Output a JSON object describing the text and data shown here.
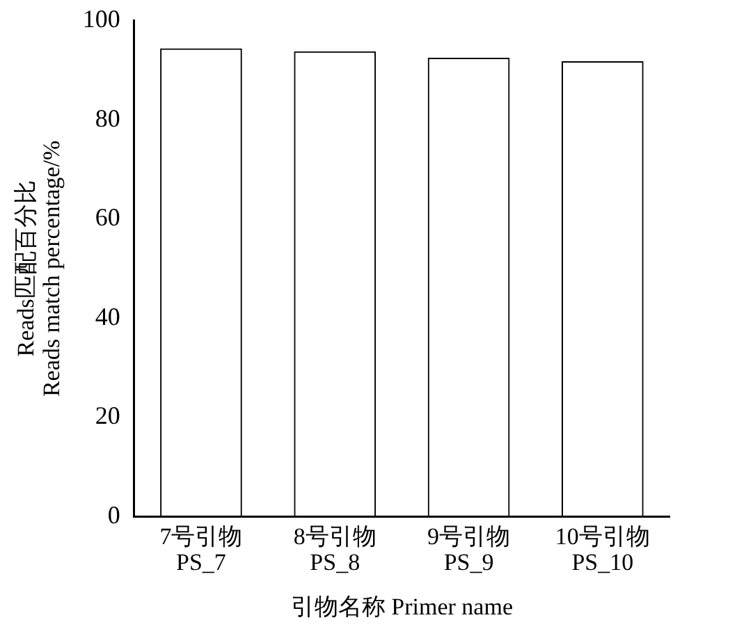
{
  "chart_data": {
    "type": "bar",
    "categories": [
      "7号引物\nPS_7",
      "8号引物\nPS_8",
      "9号引物\nPS_9",
      "10号引物\nPS_10"
    ],
    "values": [
      94.4,
      93.8,
      92.5,
      91.8
    ],
    "color": "#000000",
    "xlabel": "引物名称 Primer name",
    "ylabel": "Reads匹配百分比\nReads match percentage/%",
    "ylim": [
      0,
      100
    ],
    "yticks": [
      0,
      20,
      40,
      60,
      80,
      100
    ],
    "grid": false,
    "legend": false
  }
}
